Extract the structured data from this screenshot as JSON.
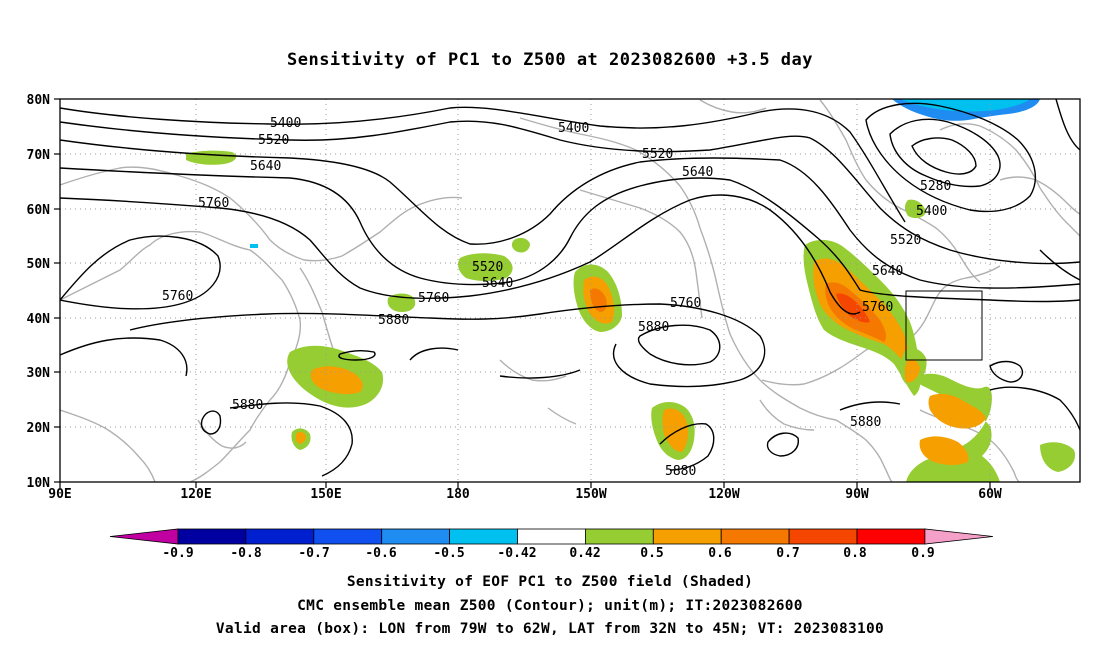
{
  "title": "Sensitivity of PC1 to Z500 at 2023082600 +3.5 day",
  "map": {
    "lon_labels": [
      "90E",
      "120E",
      "150E",
      "180",
      "150W",
      "120W",
      "90W",
      "60W"
    ],
    "lat_labels": [
      "80N",
      "70N",
      "60N",
      "50N",
      "40N",
      "30N",
      "20N",
      "10N"
    ],
    "contour_labels": [
      "5400",
      "5520",
      "5640",
      "5760",
      "5880",
      "5280"
    ],
    "valid_box": {
      "lon_from": "79W",
      "lon_to": "62W",
      "lat_from": "32N",
      "lat_to": "45N"
    }
  },
  "colorbar": {
    "labels": [
      "-0.9",
      "-0.8",
      "-0.7",
      "-0.6",
      "-0.5",
      "-0.42",
      "0.42",
      "0.5",
      "0.6",
      "0.7",
      "0.8",
      "0.9"
    ],
    "colors": [
      "#c000a0",
      "#0000a0",
      "#0020d0",
      "#1050f0",
      "#1e8cf0",
      "#00c0f0",
      "#ffffff",
      "#96cd32",
      "#f5a000",
      "#f57800",
      "#f54600",
      "#ff0000",
      "#f5a0c8"
    ]
  },
  "captions": {
    "line1": "Sensitivity of EOF PC1 to Z500 field (Shaded)",
    "line2": "CMC ensemble mean Z500 (Contour); unit(m); IT:2023082600",
    "line3": "Valid area (box): LON from 79W to 62W, LAT from 32N to 45N; VT: 2023083100"
  }
}
